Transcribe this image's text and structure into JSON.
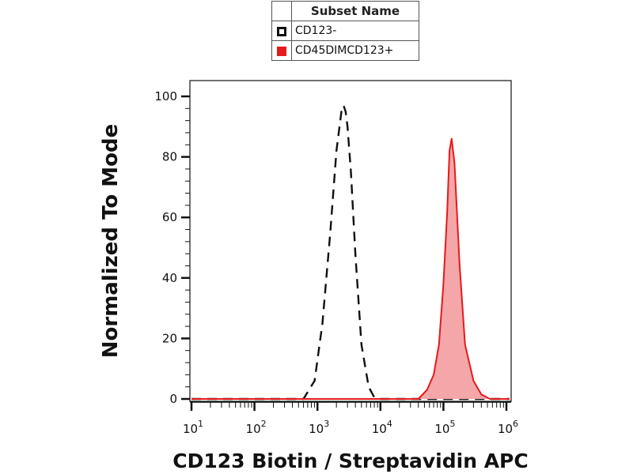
{
  "legend": {
    "header": "Subset Name",
    "entries": [
      {
        "name": "CD123-",
        "style": "dashed-outline",
        "color": "#111111"
      },
      {
        "name": "CD45DIMCD123+",
        "style": "filled",
        "color": "#e41a1c"
      }
    ]
  },
  "chart_data": {
    "type": "area",
    "xlabel": "CD123 Biotin / Streptavidin APC",
    "ylabel": "Normalized To Mode",
    "x_scale": "log",
    "xlim": [
      10,
      1000000
    ],
    "ylim": [
      0,
      100
    ],
    "yticks": [
      0,
      20,
      40,
      60,
      80,
      100
    ],
    "xticks": [
      {
        "base": "10",
        "exp": "1"
      },
      {
        "base": "10",
        "exp": "2"
      },
      {
        "base": "10",
        "exp": "3"
      },
      {
        "base": "10",
        "exp": "4"
      },
      {
        "base": "10",
        "exp": "5"
      },
      {
        "base": "10",
        "exp": "6"
      }
    ],
    "grid": false,
    "series": [
      {
        "name": "CD123-",
        "style": "dashed",
        "color": "#111111",
        "x": [
          600,
          900,
          1200,
          1600,
          2000,
          2400,
          2600,
          2800,
          3000,
          3400,
          4000,
          5000,
          6500,
          8000,
          10000
        ],
        "y": [
          0,
          6,
          25,
          55,
          82,
          95,
          97,
          95,
          90,
          75,
          48,
          18,
          4,
          0.5,
          0
        ]
      },
      {
        "name": "CD45DIMCD123+",
        "style": "filled",
        "color": "#e41a1c",
        "x": [
          40000,
          55000,
          70000,
          85000,
          100000,
          115000,
          125000,
          135000,
          150000,
          180000,
          220000,
          300000,
          400000,
          550000
        ],
        "y": [
          0,
          3,
          8,
          18,
          38,
          62,
          82,
          86,
          78,
          45,
          18,
          6,
          1.5,
          0
        ]
      }
    ]
  }
}
